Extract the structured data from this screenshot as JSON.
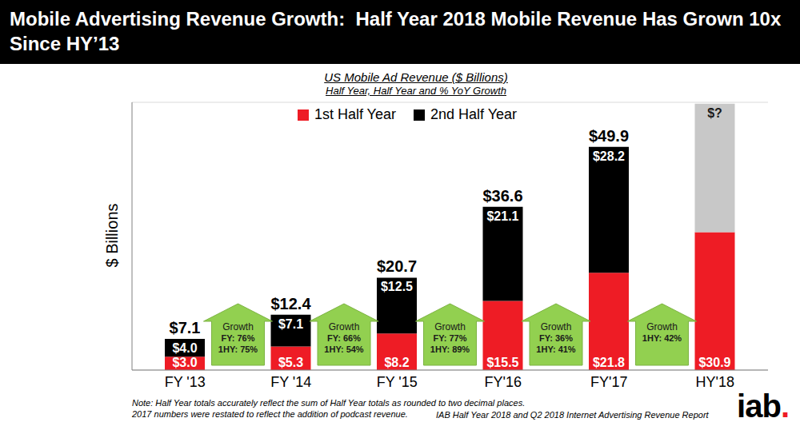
{
  "chart_data": {
    "type": "bar",
    "title": "Mobile Advertising Revenue Growth:  Half Year 2018 Mobile Revenue Has Grown 10x Since HY’13",
    "subtitle": "US Mobile Ad Revenue ($ Billions)",
    "subtitle2": "Half Year, Half Year and % YoY Growth",
    "y_label": "$ Billions",
    "categories": [
      "FY '13",
      "FY '14",
      "FY '15",
      "FY'16",
      "FY'17",
      "HY'18"
    ],
    "series": [
      {
        "name": "1st Half Year",
        "color": "#ee1c25",
        "values": [
          3.0,
          5.3,
          8.2,
          15.5,
          21.8,
          30.9
        ],
        "value_labels": [
          "$3.0",
          "$5.3",
          "$8.2",
          "$15.5",
          "$21.8",
          "$30.9"
        ]
      },
      {
        "name": "2nd Half Year",
        "color": "#000000",
        "colors": [
          "#000000",
          "#000000",
          "#000000",
          "#000000",
          "#000000",
          "#c8c8c8"
        ],
        "values": [
          4.0,
          7.1,
          12.5,
          21.1,
          28.2,
          28.8
        ],
        "value_labels": [
          "$4.0",
          "$7.1",
          "$12.5",
          "$21.1",
          "$28.2",
          "$?"
        ]
      }
    ],
    "totals": {
      "values": [
        7.1,
        12.4,
        20.7,
        36.6,
        49.9,
        null
      ],
      "value_labels": [
        "$7.1",
        "$12.4",
        "$20.7",
        "$36.6",
        "$49.9",
        null
      ]
    },
    "ylim": [
      0,
      60
    ],
    "yticks": [
      0,
      10,
      20,
      30,
      40,
      50,
      60
    ],
    "grid": true,
    "stacked": true,
    "data_labels": true,
    "tick_labels": "x",
    "legend": "top",
    "annotations": [
      {
        "text": "Growth",
        "lines": [
          "FY: 76%",
          "1HY: 75%"
        ]
      },
      {
        "text": "Growth",
        "lines": [
          "FY: 66%",
          "1HY: 54%"
        ]
      },
      {
        "text": "Growth",
        "lines": [
          "FY: 77%",
          "1HY: 89%"
        ]
      },
      {
        "text": "Growth",
        "lines": [
          "FY: 36%",
          "1HY: 41%"
        ]
      },
      {
        "text": "Growth",
        "lines": [
          "1HY: 42%"
        ]
      }
    ],
    "notes": [
      "Note: Half Year totals accurately reflect the sum of Half Year totals as rounded to two decimal places.",
      "2017 numbers were restated to reflect the addition of podcast revenue."
    ],
    "source": "IAB Half Year 2018 and Q2 2018 Internet Advertising Revenue Report",
    "logo": "iab."
  }
}
